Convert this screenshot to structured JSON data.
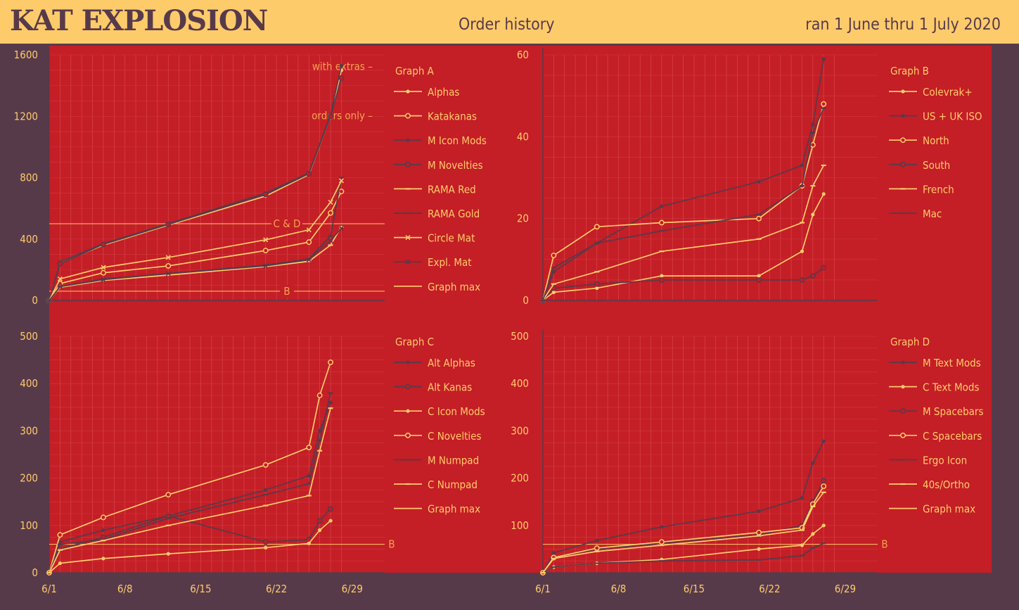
{
  "header": {
    "brand": "KAT EXPLOSION",
    "subtitle": "Order history",
    "dates": "ran 1 June thru 1 July 2020"
  },
  "colors": {
    "background": "#573a4a",
    "plot_red": "#c41e26",
    "yellow": "#fecb6b",
    "purple": "#573a4a"
  },
  "chart_data": [
    {
      "type": "line",
      "id": "A",
      "legend_title": "Graph A",
      "xlim": [
        0,
        31
      ],
      "ylim": [
        0,
        1600
      ],
      "yticks": [
        0,
        400,
        800,
        1200,
        1600
      ],
      "annotations": [
        {
          "text": "with extras –",
          "y": 1520
        },
        {
          "text": "orders only –",
          "y": 1200
        }
      ],
      "reference_lines": [
        {
          "label": "C & D",
          "y": 500
        },
        {
          "label": "B",
          "y": 60
        }
      ],
      "series": [
        {
          "name": "Alphas",
          "color": "#fecb6b",
          "marker": "dot",
          "x": [
            0,
            1,
            5,
            11,
            20,
            24,
            26,
            27
          ],
          "y": [
            0,
            245,
            360,
            490,
            680,
            820,
            1200,
            1500
          ]
        },
        {
          "name": "Katakanas",
          "color": "#fecb6b",
          "marker": "circle",
          "x": [
            0,
            1,
            5,
            11,
            20,
            24,
            26,
            27
          ],
          "y": [
            0,
            110,
            180,
            225,
            325,
            380,
            570,
            710
          ]
        },
        {
          "name": "M Icon Mods",
          "color": "#573a4a",
          "marker": "dot",
          "x": [
            0,
            1,
            5,
            11,
            20,
            24,
            26,
            27
          ],
          "y": [
            0,
            250,
            370,
            500,
            700,
            830,
            1210,
            1530
          ]
        },
        {
          "name": "M Novelties",
          "color": "#573a4a",
          "marker": "circle",
          "x": [
            0,
            1,
            5,
            11,
            20,
            24,
            26,
            27
          ],
          "y": [
            0,
            240,
            365,
            495,
            690,
            825,
            1200,
            1450
          ]
        },
        {
          "name": "RAMA Red",
          "color": "#fecb6b",
          "marker": "dash",
          "x": [
            0,
            1,
            5,
            11,
            20,
            24,
            26,
            27
          ],
          "y": [
            0,
            85,
            130,
            165,
            220,
            255,
            360,
            480
          ]
        },
        {
          "name": "RAMA Gold",
          "color": "#573a4a",
          "marker": "dash",
          "x": [
            0,
            1,
            5,
            11,
            20,
            24,
            26,
            27
          ],
          "y": [
            0,
            90,
            140,
            175,
            230,
            270,
            420,
            800
          ]
        },
        {
          "name": "Circle Mat",
          "color": "#fecb6b",
          "marker": "x",
          "x": [
            0,
            1,
            5,
            11,
            20,
            24,
            26,
            27
          ],
          "y": [
            0,
            140,
            215,
            280,
            395,
            460,
            640,
            780
          ]
        },
        {
          "name": "Expl. Mat",
          "color": "#573a4a",
          "marker": "x",
          "x": [
            0,
            1,
            5,
            11,
            20,
            24,
            26,
            27
          ],
          "y": [
            0,
            90,
            135,
            175,
            225,
            265,
            390,
            470
          ]
        },
        {
          "name": "Graph max",
          "color": "#fecb6b",
          "marker": "none",
          "x": [],
          "y": []
        }
      ]
    },
    {
      "type": "line",
      "id": "B",
      "legend_title": "Graph B",
      "xlim": [
        0,
        31
      ],
      "ylim": [
        0,
        60
      ],
      "yticks": [
        0,
        20,
        40,
        60
      ],
      "series": [
        {
          "name": "Colevrak+",
          "color": "#fecb6b",
          "marker": "dot",
          "x": [
            0,
            1,
            5,
            11,
            20,
            24,
            25,
            26
          ],
          "y": [
            0,
            2,
            3,
            6,
            6,
            12,
            21,
            26
          ]
        },
        {
          "name": "US + UK ISO",
          "color": "#573a4a",
          "marker": "dot",
          "x": [
            0,
            1,
            5,
            11,
            20,
            24,
            25,
            26
          ],
          "y": [
            0,
            7,
            14,
            23,
            29,
            33,
            43,
            59
          ]
        },
        {
          "name": "North",
          "color": "#fecb6b",
          "marker": "circle",
          "x": [
            0,
            1,
            5,
            11,
            20,
            24,
            25,
            26
          ],
          "y": [
            0,
            11,
            18,
            19,
            20,
            28,
            38,
            48
          ]
        },
        {
          "name": "South",
          "color": "#573a4a",
          "marker": "circle",
          "x": [
            0,
            1,
            5,
            11,
            20,
            24,
            25,
            26
          ],
          "y": [
            0,
            3,
            4,
            5,
            5,
            5,
            6,
            8
          ]
        },
        {
          "name": "French",
          "color": "#fecb6b",
          "marker": "dash",
          "x": [
            0,
            1,
            5,
            11,
            20,
            24,
            25,
            26
          ],
          "y": [
            0,
            4,
            7,
            12,
            15,
            19,
            28,
            33
          ]
        },
        {
          "name": "Mac",
          "color": "#573a4a",
          "marker": "dash",
          "x": [
            0,
            1,
            5,
            11,
            20,
            24,
            25,
            26
          ],
          "y": [
            0,
            8,
            14,
            17,
            21,
            28,
            41,
            47
          ]
        }
      ]
    },
    {
      "type": "line",
      "id": "C",
      "legend_title": "Graph C",
      "xlim": [
        0,
        31
      ],
      "ylim": [
        0,
        500
      ],
      "yticks": [
        0,
        100,
        200,
        300,
        400,
        500
      ],
      "xticks": [
        "6/1",
        "6/8",
        "6/15",
        "6/22",
        "6/29"
      ],
      "reference_lines": [
        {
          "label": "B",
          "y": 60
        }
      ],
      "series": [
        {
          "name": "Alt Alphas",
          "color": "#573a4a",
          "marker": "dot",
          "x": [
            0,
            1,
            5,
            11,
            20,
            24,
            25,
            26
          ],
          "y": [
            0,
            65,
            90,
            120,
            175,
            205,
            300,
            360
          ]
        },
        {
          "name": "Alt Kanas",
          "color": "#573a4a",
          "marker": "circle",
          "x": [
            0,
            1,
            5,
            11,
            20,
            24,
            25,
            26
          ],
          "y": [
            0,
            50,
            75,
            120,
            65,
            70,
            110,
            135
          ]
        },
        {
          "name": "C Icon Mods",
          "color": "#fecb6b",
          "marker": "dot",
          "x": [
            0,
            1,
            5,
            11,
            20,
            24,
            25,
            26
          ],
          "y": [
            0,
            20,
            30,
            40,
            53,
            62,
            90,
            110
          ]
        },
        {
          "name": "C Novelties",
          "color": "#fecb6b",
          "marker": "circle",
          "x": [
            0,
            1,
            5,
            11,
            20,
            24,
            25,
            26
          ],
          "y": [
            0,
            80,
            117,
            165,
            228,
            265,
            375,
            445
          ]
        },
        {
          "name": "M Numpad",
          "color": "#573a4a",
          "marker": "dash",
          "x": [
            0,
            1,
            5,
            11,
            20,
            24,
            25,
            26
          ],
          "y": [
            0,
            60,
            70,
            115,
            165,
            188,
            280,
            380
          ]
        },
        {
          "name": "C Numpad",
          "color": "#fecb6b",
          "marker": "dash",
          "x": [
            0,
            1,
            5,
            11,
            20,
            24,
            25,
            26
          ],
          "y": [
            0,
            48,
            68,
            100,
            142,
            163,
            258,
            348
          ]
        },
        {
          "name": "Graph max",
          "color": "#fecb6b",
          "marker": "none",
          "x": [],
          "y": []
        }
      ]
    },
    {
      "type": "line",
      "id": "D",
      "legend_title": "Graph D",
      "xlim": [
        0,
        31
      ],
      "ylim": [
        0,
        500
      ],
      "yticks": [
        100,
        200,
        300,
        400,
        500
      ],
      "xticks": [
        "6/1",
        "6/8",
        "6/15",
        "6/22",
        "6/29"
      ],
      "reference_lines": [
        {
          "label": "B",
          "y": 60
        }
      ],
      "series": [
        {
          "name": "M Text Mods",
          "color": "#573a4a",
          "marker": "dot",
          "x": [
            0,
            1,
            5,
            11,
            20,
            24,
            25,
            26
          ],
          "y": [
            0,
            42,
            68,
            97,
            130,
            158,
            232,
            278
          ]
        },
        {
          "name": "C Text Mods",
          "color": "#fecb6b",
          "marker": "dot",
          "x": [
            0,
            1,
            5,
            11,
            20,
            24,
            25,
            26
          ],
          "y": [
            0,
            12,
            20,
            28,
            50,
            58,
            82,
            100
          ]
        },
        {
          "name": "M Spacebars",
          "color": "#573a4a",
          "marker": "circle",
          "x": [
            0,
            1,
            5,
            11,
            20,
            24,
            25,
            26
          ],
          "y": [
            0,
            32,
            50,
            62,
            80,
            100,
            150,
            195
          ]
        },
        {
          "name": "C Spacebars",
          "color": "#fecb6b",
          "marker": "circle",
          "x": [
            0,
            1,
            5,
            11,
            20,
            24,
            25,
            26
          ],
          "y": [
            0,
            32,
            52,
            65,
            85,
            95,
            145,
            183
          ]
        },
        {
          "name": "Ergo Icon",
          "color": "#573a4a",
          "marker": "dash",
          "x": [
            0,
            1,
            5,
            11,
            20,
            24,
            25,
            26
          ],
          "y": [
            0,
            12,
            20,
            25,
            27,
            36,
            52,
            62
          ]
        },
        {
          "name": "40s/Ortho",
          "color": "#fecb6b",
          "marker": "dash",
          "x": [
            0,
            1,
            5,
            11,
            20,
            24,
            25,
            26
          ],
          "y": [
            0,
            30,
            45,
            58,
            78,
            90,
            140,
            170
          ]
        },
        {
          "name": "Graph max",
          "color": "#fecb6b",
          "marker": "none",
          "x": [],
          "y": []
        }
      ]
    }
  ]
}
